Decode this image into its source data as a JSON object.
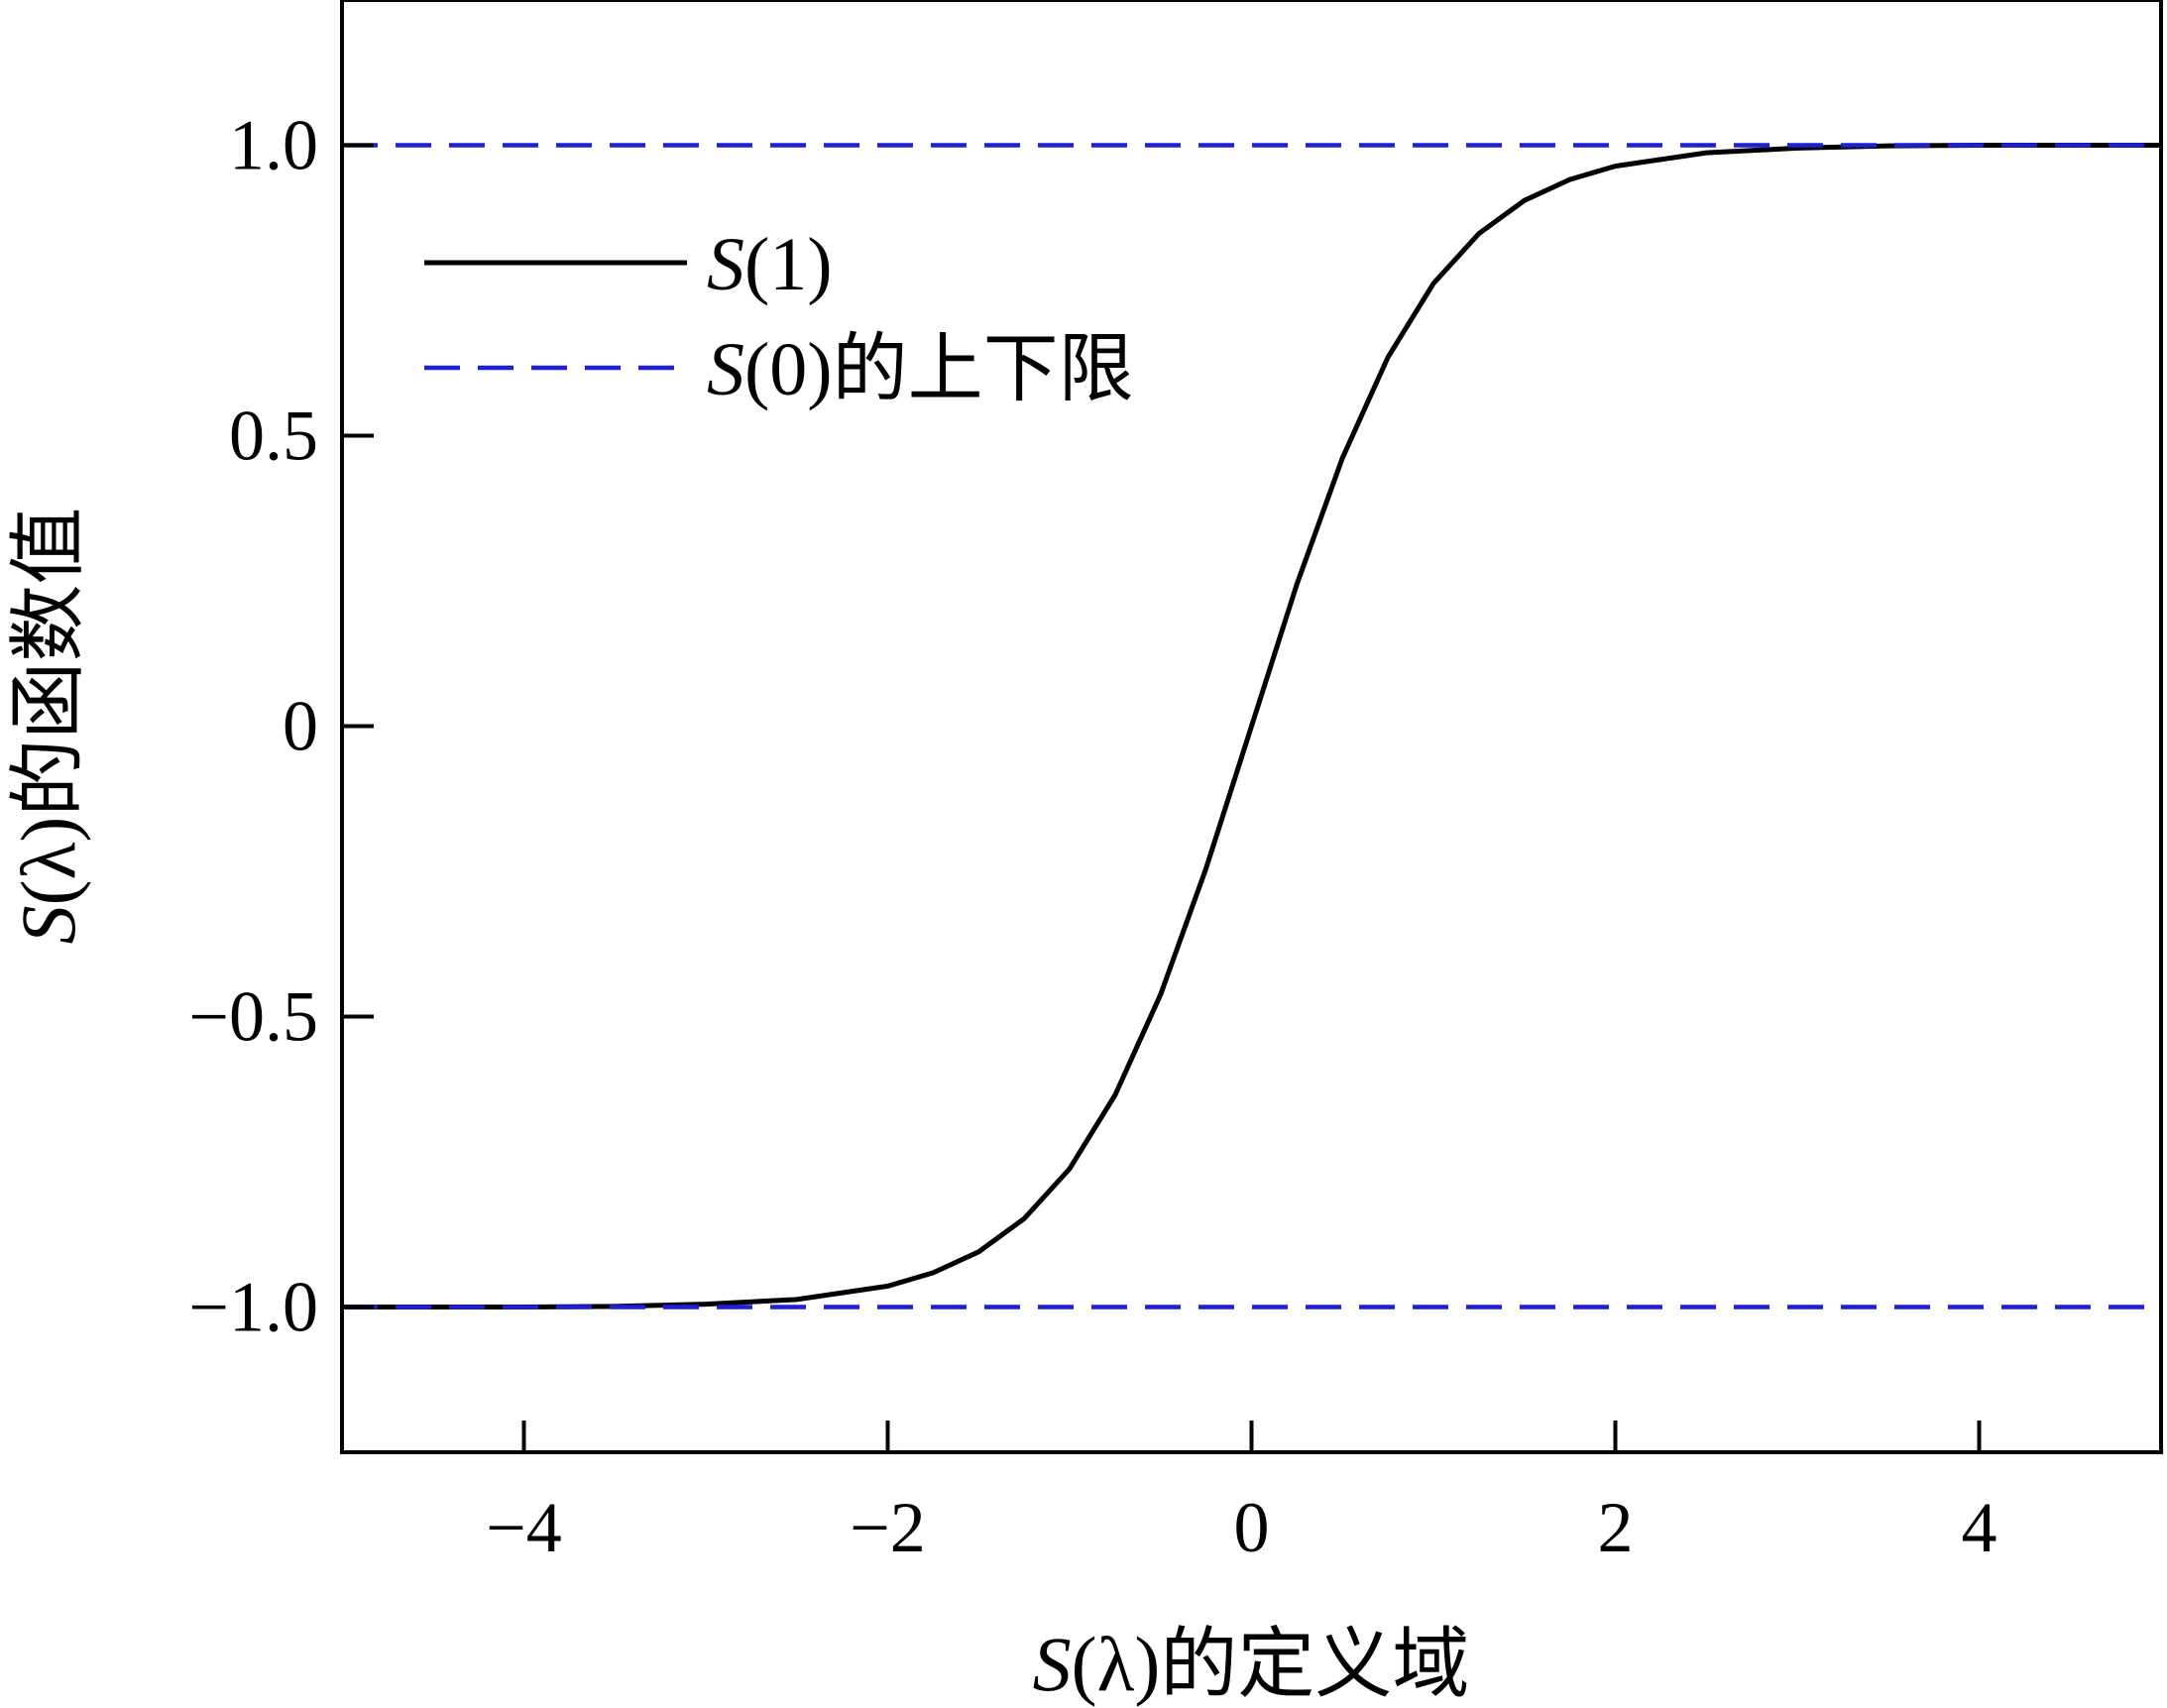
{
  "chart_data": {
    "type": "line",
    "xlabel": "S(λ)的定义域",
    "xlabel_parts": {
      "symbol": "S",
      "arg": "(λ)",
      "rest": "的定义域"
    },
    "ylabel": "S(λ)的函数值",
    "ylabel_parts": {
      "symbol": "S",
      "arg": "(λ)",
      "rest": "的函数值"
    },
    "xlim": [
      -5,
      5
    ],
    "ylim": [
      -1.25,
      1.25
    ],
    "xticks": [
      -4,
      -2,
      0,
      2,
      4
    ],
    "xtick_labels": [
      "−4",
      "−2",
      "0",
      "2",
      "4"
    ],
    "yticks": [
      -1.0,
      -0.5,
      0,
      0.5,
      1.0
    ],
    "ytick_labels": [
      "−1.0",
      "−0.5",
      "0",
      "0.5",
      "1.0"
    ],
    "grid": false,
    "legend_position": "top-left",
    "series": [
      {
        "name": "S(1)",
        "name_parts": {
          "symbol": "S",
          "rest": "(1)"
        },
        "style": "solid",
        "color": "#000000",
        "x": [
          -5,
          -4.5,
          -4,
          -3.5,
          -3,
          -2.5,
          -2,
          -1.75,
          -1.5,
          -1.25,
          -1,
          -0.75,
          -0.5,
          -0.25,
          0,
          0.25,
          0.5,
          0.75,
          1,
          1.25,
          1.5,
          1.75,
          2,
          2.5,
          3,
          3.5,
          4,
          4.5,
          5
        ],
        "y": [
          -1.0,
          -1.0,
          -1.0,
          -0.999,
          -0.995,
          -0.987,
          -0.964,
          -0.941,
          -0.905,
          -0.848,
          -0.762,
          -0.635,
          -0.462,
          -0.245,
          0.0,
          0.245,
          0.462,
          0.635,
          0.762,
          0.848,
          0.905,
          0.941,
          0.964,
          0.987,
          0.995,
          0.999,
          1.0,
          1.0,
          1.0
        ]
      },
      {
        "name": "S(0)的上下限",
        "name_parts": {
          "symbol": "S",
          "rest": "(0)的上下限"
        },
        "style": "dashed",
        "color": "#1f1fd6",
        "lines_y": [
          1.0,
          -1.0
        ]
      }
    ]
  }
}
